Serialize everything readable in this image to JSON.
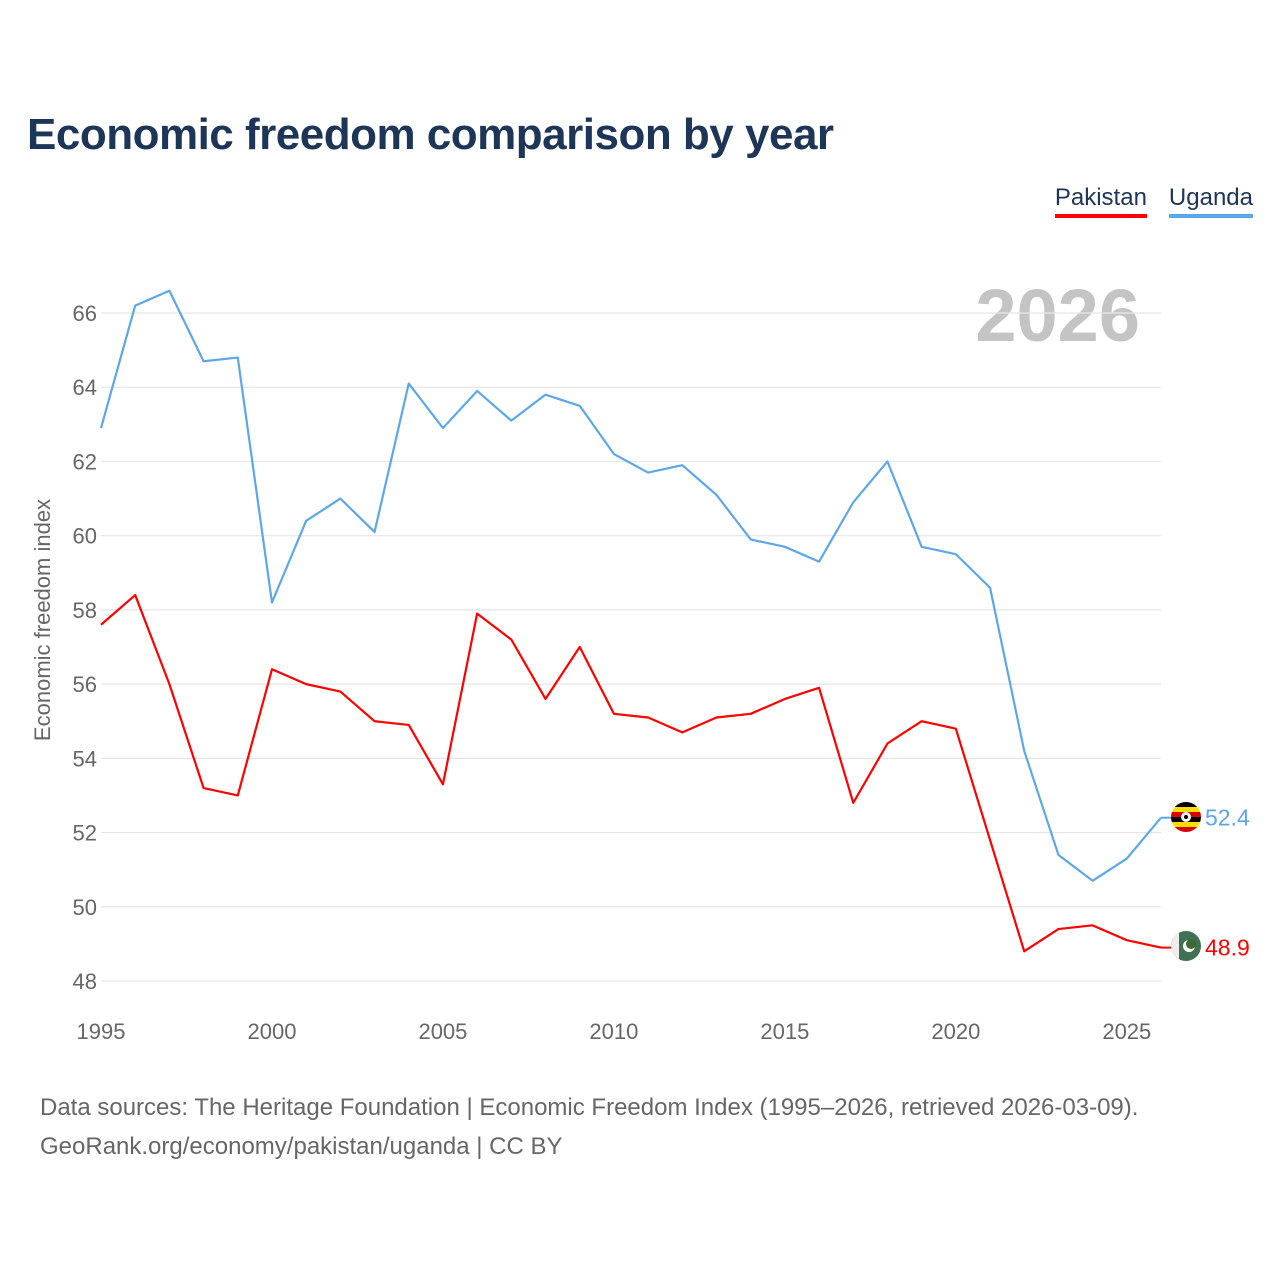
{
  "title": "Economic freedom comparison by year",
  "legend": [
    {
      "label": "Pakistan",
      "color": "#ff0000"
    },
    {
      "label": "Uganda",
      "color": "#5da7e8"
    }
  ],
  "year_watermark": "2026",
  "footer": {
    "line1": "Data sources: The Heritage Foundation | Economic Freedom Index (1995–2026, retrieved 2026-03-09).",
    "line2": "GeoRank.org/economy/pakistan/uganda | CC BY"
  },
  "chart_data": {
    "type": "line",
    "title": "Economic freedom comparison by year",
    "xlabel": "",
    "ylabel": "Economic freedom index",
    "xlim": [
      1995,
      2026
    ],
    "ylim": [
      48,
      67
    ],
    "x_ticks": [
      "1995",
      "2000",
      "2005",
      "2010",
      "2015",
      "2020",
      "2025"
    ],
    "y_ticks": [
      "48",
      "50",
      "52",
      "54",
      "56",
      "58",
      "60",
      "62",
      "64",
      "66"
    ],
    "grid": true,
    "legend_position": "top-right",
    "x": [
      1995,
      1996,
      1997,
      1998,
      1999,
      2000,
      2001,
      2002,
      2003,
      2004,
      2005,
      2006,
      2007,
      2008,
      2009,
      2010,
      2011,
      2012,
      2013,
      2014,
      2015,
      2016,
      2017,
      2018,
      2019,
      2020,
      2021,
      2022,
      2023,
      2024,
      2025,
      2026
    ],
    "series": [
      {
        "name": "Pakistan",
        "color": "#ff0000",
        "end_label": "48.9",
        "values": [
          57.6,
          58.4,
          56.0,
          53.2,
          53.0,
          56.4,
          56.0,
          55.8,
          55.0,
          54.9,
          53.3,
          57.9,
          57.2,
          55.6,
          57.0,
          55.2,
          55.1,
          54.7,
          55.1,
          55.2,
          55.6,
          55.9,
          52.8,
          54.4,
          55.0,
          54.8,
          51.8,
          48.8,
          49.4,
          49.5,
          49.1,
          48.9
        ]
      },
      {
        "name": "Uganda",
        "color": "#5da7e8",
        "end_label": "52.4",
        "values": [
          62.9,
          66.2,
          66.6,
          64.7,
          64.8,
          58.2,
          60.4,
          61.0,
          60.1,
          64.1,
          62.9,
          63.9,
          63.1,
          63.8,
          63.5,
          62.2,
          61.7,
          61.9,
          61.1,
          59.9,
          59.7,
          59.3,
          60.9,
          62.0,
          59.7,
          59.5,
          58.6,
          54.2,
          51.4,
          50.7,
          51.3,
          52.4
        ]
      }
    ]
  }
}
